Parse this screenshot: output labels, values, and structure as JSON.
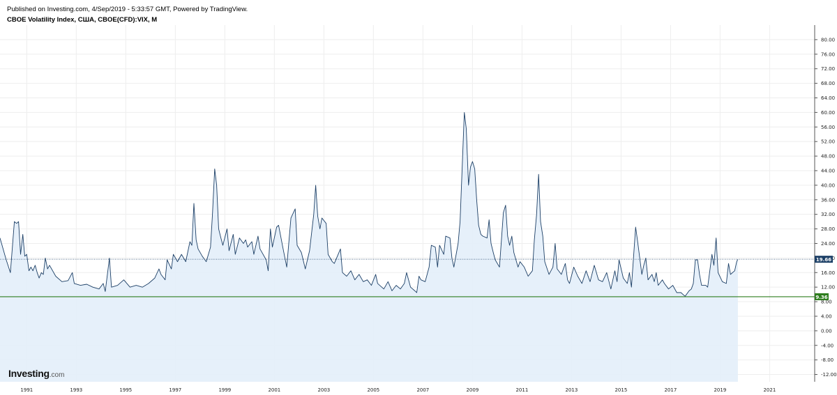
{
  "header": {
    "published": "Published on Investing.com, 4/Sep/2019 - 5:33:57 GMT, Powered by TradingView.",
    "title": "CBOE Volatility Index, США, CBOE(CFD):VIX, M"
  },
  "logo": {
    "brand": "Investing",
    "domain": ".com"
  },
  "colors": {
    "line": "#1c3f66",
    "fill": "#e3eefa",
    "last_badge": "#1c3f66",
    "low_line": "#2e7d1e",
    "grid": "#eeeeee"
  },
  "chart_data": {
    "type": "area",
    "title": "CBOE Volatility Index, США, CBOE(CFD):VIX, M",
    "xlabel": "",
    "ylabel": "",
    "xlim": [
      1990.0,
      2022.9
    ],
    "ylim": [
      -14,
      84
    ],
    "y_ticks": [
      -12,
      -8,
      -4,
      0,
      4,
      8,
      12,
      16,
      20,
      24,
      28,
      32,
      36,
      40,
      44,
      48,
      52,
      56,
      60,
      64,
      68,
      72,
      76,
      80
    ],
    "x_ticks": [
      "1991",
      "1993",
      "1995",
      "1997",
      "1999",
      "2001",
      "2003",
      "2005",
      "2007",
      "2009",
      "2011",
      "2013",
      "2015",
      "2017",
      "2019",
      "2021"
    ],
    "grid": true,
    "last_value": 19.66,
    "last_value_label": "19.66",
    "low_value": 9.36,
    "low_value_label": "9.36",
    "series": [
      {
        "points": [
          [
            1990.0,
            25.5
          ],
          [
            1990.25,
            19.5
          ],
          [
            1990.42,
            16.0
          ],
          [
            1990.58,
            30.0
          ],
          [
            1990.67,
            29.5
          ],
          [
            1990.75,
            30.0
          ],
          [
            1990.83,
            21.0
          ],
          [
            1990.92,
            26.5
          ],
          [
            1991.0,
            20.5
          ],
          [
            1991.08,
            21.0
          ],
          [
            1991.17,
            16.5
          ],
          [
            1991.25,
            17.5
          ],
          [
            1991.33,
            16.5
          ],
          [
            1991.42,
            18.0
          ],
          [
            1991.5,
            16.0
          ],
          [
            1991.58,
            14.5
          ],
          [
            1991.67,
            16.0
          ],
          [
            1991.75,
            15.5
          ],
          [
            1991.83,
            20.0
          ],
          [
            1991.92,
            17.0
          ],
          [
            1992.0,
            18.0
          ],
          [
            1992.25,
            15.0
          ],
          [
            1992.5,
            13.5
          ],
          [
            1992.75,
            13.8
          ],
          [
            1992.92,
            16.0
          ],
          [
            1993.0,
            13.0
          ],
          [
            1993.25,
            12.5
          ],
          [
            1993.5,
            12.8
          ],
          [
            1993.75,
            12.0
          ],
          [
            1994.0,
            11.5
          ],
          [
            1994.17,
            13.0
          ],
          [
            1994.25,
            10.8
          ],
          [
            1994.42,
            20.0
          ],
          [
            1994.5,
            12.0
          ],
          [
            1994.75,
            12.5
          ],
          [
            1995.0,
            14.0
          ],
          [
            1995.25,
            12.0
          ],
          [
            1995.5,
            12.5
          ],
          [
            1995.75,
            12.0
          ],
          [
            1996.0,
            13.0
          ],
          [
            1996.25,
            14.5
          ],
          [
            1996.42,
            17.0
          ],
          [
            1996.5,
            15.5
          ],
          [
            1996.67,
            14.0
          ],
          [
            1996.75,
            19.5
          ],
          [
            1996.92,
            17.0
          ],
          [
            1997.0,
            21.0
          ],
          [
            1997.17,
            19.0
          ],
          [
            1997.33,
            21.0
          ],
          [
            1997.5,
            19.0
          ],
          [
            1997.67,
            24.5
          ],
          [
            1997.75,
            23.5
          ],
          [
            1997.83,
            35.0
          ],
          [
            1997.92,
            25.0
          ],
          [
            1998.0,
            22.5
          ],
          [
            1998.17,
            20.5
          ],
          [
            1998.33,
            19.0
          ],
          [
            1998.5,
            23.0
          ],
          [
            1998.58,
            32.0
          ],
          [
            1998.67,
            44.5
          ],
          [
            1998.75,
            40.0
          ],
          [
            1998.83,
            28.0
          ],
          [
            1998.92,
            25.5
          ],
          [
            1999.0,
            23.5
          ],
          [
            1999.17,
            28.0
          ],
          [
            1999.25,
            22.0
          ],
          [
            1999.42,
            26.5
          ],
          [
            1999.5,
            21.0
          ],
          [
            1999.67,
            25.5
          ],
          [
            1999.83,
            24.0
          ],
          [
            1999.92,
            25.0
          ],
          [
            2000.0,
            23.0
          ],
          [
            2000.17,
            24.5
          ],
          [
            2000.25,
            21.0
          ],
          [
            2000.42,
            26.0
          ],
          [
            2000.5,
            22.5
          ],
          [
            2000.75,
            19.5
          ],
          [
            2000.83,
            16.5
          ],
          [
            2000.92,
            28.0
          ],
          [
            2001.0,
            23.0
          ],
          [
            2001.17,
            28.5
          ],
          [
            2001.25,
            29.0
          ],
          [
            2001.42,
            23.0
          ],
          [
            2001.58,
            17.5
          ],
          [
            2001.75,
            31.0
          ],
          [
            2001.92,
            33.5
          ],
          [
            2002.0,
            23.5
          ],
          [
            2002.17,
            21.5
          ],
          [
            2002.33,
            17.0
          ],
          [
            2002.5,
            22.0
          ],
          [
            2002.67,
            32.0
          ],
          [
            2002.75,
            40.0
          ],
          [
            2002.83,
            31.5
          ],
          [
            2002.92,
            28.0
          ],
          [
            2003.0,
            31.0
          ],
          [
            2003.17,
            29.5
          ],
          [
            2003.25,
            21.0
          ],
          [
            2003.42,
            19.0
          ],
          [
            2003.5,
            18.5
          ],
          [
            2003.75,
            22.5
          ],
          [
            2003.83,
            16.0
          ],
          [
            2004.0,
            15.0
          ],
          [
            2004.17,
            16.5
          ],
          [
            2004.33,
            14.0
          ],
          [
            2004.5,
            15.5
          ],
          [
            2004.67,
            13.5
          ],
          [
            2004.83,
            14.0
          ],
          [
            2005.0,
            12.5
          ],
          [
            2005.17,
            15.5
          ],
          [
            2005.25,
            13.0
          ],
          [
            2005.5,
            11.5
          ],
          [
            2005.67,
            13.5
          ],
          [
            2005.83,
            11.0
          ],
          [
            2006.0,
            12.5
          ],
          [
            2006.17,
            11.5
          ],
          [
            2006.33,
            13.0
          ],
          [
            2006.42,
            16.0
          ],
          [
            2006.58,
            12.0
          ],
          [
            2006.75,
            11.0
          ],
          [
            2006.83,
            10.5
          ],
          [
            2006.92,
            15.0
          ],
          [
            2007.0,
            14.0
          ],
          [
            2007.17,
            13.5
          ],
          [
            2007.33,
            17.5
          ],
          [
            2007.42,
            23.5
          ],
          [
            2007.58,
            23.0
          ],
          [
            2007.67,
            17.5
          ],
          [
            2007.75,
            23.5
          ],
          [
            2007.92,
            21.0
          ],
          [
            2008.0,
            26.0
          ],
          [
            2008.17,
            25.5
          ],
          [
            2008.25,
            20.0
          ],
          [
            2008.33,
            17.5
          ],
          [
            2008.5,
            24.0
          ],
          [
            2008.58,
            30.0
          ],
          [
            2008.75,
            60.0
          ],
          [
            2008.83,
            55.5
          ],
          [
            2008.92,
            40.0
          ],
          [
            2009.0,
            45.0
          ],
          [
            2009.08,
            46.5
          ],
          [
            2009.17,
            44.5
          ],
          [
            2009.25,
            36.0
          ],
          [
            2009.33,
            29.0
          ],
          [
            2009.42,
            26.5
          ],
          [
            2009.5,
            26.0
          ],
          [
            2009.67,
            25.5
          ],
          [
            2009.75,
            30.5
          ],
          [
            2009.83,
            24.0
          ],
          [
            2009.92,
            21.5
          ],
          [
            2010.0,
            19.5
          ],
          [
            2010.17,
            17.5
          ],
          [
            2010.33,
            32.5
          ],
          [
            2010.42,
            34.5
          ],
          [
            2010.5,
            26.0
          ],
          [
            2010.58,
            23.5
          ],
          [
            2010.67,
            26.0
          ],
          [
            2010.75,
            21.5
          ],
          [
            2010.92,
            17.5
          ],
          [
            2011.0,
            19.0
          ],
          [
            2011.17,
            17.5
          ],
          [
            2011.33,
            15.0
          ],
          [
            2011.5,
            16.5
          ],
          [
            2011.58,
            25.0
          ],
          [
            2011.67,
            32.0
          ],
          [
            2011.75,
            43.0
          ],
          [
            2011.83,
            30.0
          ],
          [
            2011.92,
            26.0
          ],
          [
            2012.0,
            19.0
          ],
          [
            2012.17,
            15.5
          ],
          [
            2012.33,
            17.5
          ],
          [
            2012.42,
            24.0
          ],
          [
            2012.5,
            17.0
          ],
          [
            2012.67,
            15.5
          ],
          [
            2012.83,
            18.5
          ],
          [
            2012.92,
            14.0
          ],
          [
            2013.0,
            13.0
          ],
          [
            2013.17,
            17.5
          ],
          [
            2013.33,
            15.0
          ],
          [
            2013.5,
            13.0
          ],
          [
            2013.67,
            16.5
          ],
          [
            2013.83,
            13.5
          ],
          [
            2014.0,
            18.0
          ],
          [
            2014.17,
            14.0
          ],
          [
            2014.33,
            13.5
          ],
          [
            2014.5,
            16.0
          ],
          [
            2014.67,
            11.5
          ],
          [
            2014.83,
            16.5
          ],
          [
            2014.92,
            13.5
          ],
          [
            2015.0,
            19.5
          ],
          [
            2015.17,
            14.5
          ],
          [
            2015.33,
            13.0
          ],
          [
            2015.42,
            16.0
          ],
          [
            2015.5,
            12.0
          ],
          [
            2015.67,
            28.5
          ],
          [
            2015.75,
            24.5
          ],
          [
            2015.92,
            15.5
          ],
          [
            2016.0,
            18.0
          ],
          [
            2016.08,
            20.0
          ],
          [
            2016.17,
            14.0
          ],
          [
            2016.33,
            15.5
          ],
          [
            2016.42,
            13.5
          ],
          [
            2016.5,
            16.0
          ],
          [
            2016.58,
            12.5
          ],
          [
            2016.75,
            14.0
          ],
          [
            2016.83,
            13.0
          ],
          [
            2017.0,
            11.5
          ],
          [
            2017.17,
            12.5
          ],
          [
            2017.33,
            10.5
          ],
          [
            2017.5,
            10.5
          ],
          [
            2017.58,
            10.0
          ],
          [
            2017.67,
            9.5
          ],
          [
            2017.83,
            11.0
          ],
          [
            2017.92,
            11.5
          ],
          [
            2018.0,
            13.0
          ],
          [
            2018.08,
            19.5
          ],
          [
            2018.17,
            19.5
          ],
          [
            2018.25,
            15.5
          ],
          [
            2018.33,
            12.5
          ],
          [
            2018.5,
            12.5
          ],
          [
            2018.58,
            12.0
          ],
          [
            2018.75,
            21.0
          ],
          [
            2018.83,
            18.0
          ],
          [
            2018.92,
            25.5
          ],
          [
            2019.0,
            16.0
          ],
          [
            2019.17,
            13.5
          ],
          [
            2019.33,
            13.0
          ],
          [
            2019.42,
            18.5
          ],
          [
            2019.5,
            15.5
          ],
          [
            2019.67,
            16.5
          ],
          [
            2019.75,
            19.0
          ],
          [
            2019.8,
            19.66
          ]
        ]
      }
    ]
  }
}
